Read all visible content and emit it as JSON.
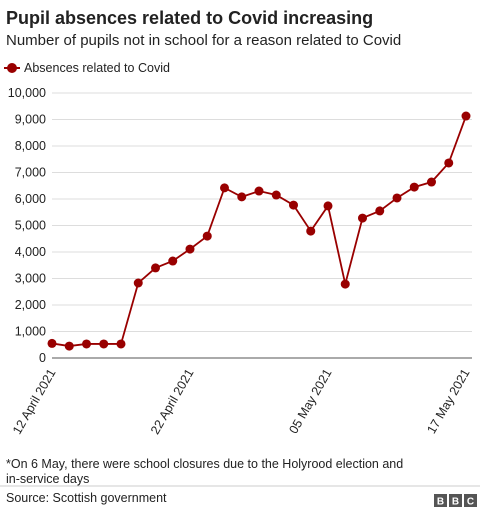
{
  "chart_data": {
    "type": "line",
    "title": "Pupil absences related to Covid increasing",
    "subtitle": "Number of pupils not in school for a reason related to Covid",
    "categories": [
      "12 April 2021",
      null,
      null,
      null,
      null,
      null,
      null,
      null,
      "22 April 2021",
      null,
      null,
      null,
      null,
      null,
      null,
      null,
      "05 May 2021",
      null,
      null,
      null,
      null,
      null,
      null,
      null,
      "17 May 2021"
    ],
    "series": [
      {
        "name": "Absences related to Covid",
        "color": "#990000",
        "values": [
          550,
          450,
          530,
          530,
          530,
          2830,
          3400,
          3660,
          4110,
          4600,
          6420,
          6080,
          6300,
          6150,
          5770,
          4790,
          5740,
          2790,
          5280,
          5550,
          6040,
          6450,
          6640,
          7360,
          9130
        ]
      }
    ],
    "ylim": [
      0,
      10000
    ],
    "yticks": [
      0,
      {
        "value": 1000,
        "label": "1,000"
      },
      {
        "value": 2000,
        "label": "2,000"
      },
      {
        "value": 3000,
        "label": "3,000"
      },
      {
        "value": 4000,
        "label": "4,000"
      },
      {
        "value": 5000,
        "label": "5,000"
      },
      {
        "value": 6000,
        "label": "6,000"
      },
      {
        "value": 7000,
        "label": "7,000"
      },
      {
        "value": 8000,
        "label": "8,000"
      },
      {
        "value": 9000,
        "label": "9,000"
      },
      {
        "value": 10000,
        "label": "10,000"
      }
    ],
    "grid": true,
    "legend": "top-left",
    "note": "*On 6 May, there were school closures due to the Holyrood election and in-service days",
    "source": "Source: Scottish government",
    "logo": "BBC"
  }
}
